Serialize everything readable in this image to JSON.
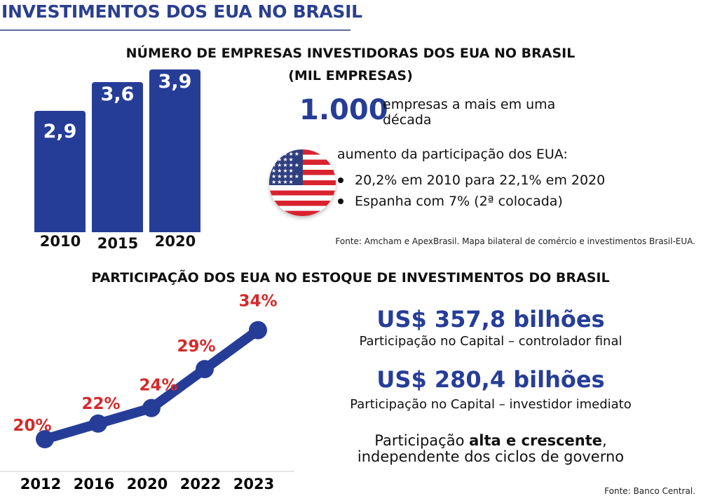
{
  "header": {
    "title": "INVESTIMENTOS DOS EUA NO BRASIL"
  },
  "companies": {
    "title_line1": "NÚMERO DE EMPRESAS INVESTIDORAS DOS EUA NO BRASIL",
    "title_line2": "(MIL EMPRESAS)",
    "highlight_number": "1.000",
    "highlight_text_line1": "empresas a mais em uma",
    "highlight_text_line2": "década",
    "flag_icon": "us-flag-icon",
    "share_heading": "aumento da participação dos EUA:",
    "bullets": [
      "20,2% em 2010 para 22,1% em 2020",
      "Espanha com 7% (2ª colocada)"
    ],
    "source": "Fonte: Amcham e ApexBrasil. Mapa bilateral de comércio e investimentos Brasil-EUA."
  },
  "stock": {
    "title": "PARTICIPAÇÃO DOS EUA NO ESTOQUE DE INVESTIMENTOS DO BRASIL",
    "value1": "US$ 357,8 bilhões",
    "label1": "Participação no Capital – controlador final",
    "value2": "US$ 280,4 bilhões",
    "label2": "Participação no Capital – investidor imediato",
    "note_prefix": "Participação ",
    "note_bold": "alta e crescente",
    "note_suffix": ",",
    "note_line2": "independente dos ciclos de governo",
    "source": "Fonte: Banco Central."
  },
  "colors": {
    "brand_blue": "#263d98",
    "label_red": "#d42a2a"
  },
  "chart_data": [
    {
      "type": "bar",
      "title": "NÚMERO DE EMPRESAS INVESTIDORAS DOS EUA NO BRASIL (MIL EMPRESAS)",
      "categories": [
        "2010",
        "2015",
        "2020"
      ],
      "values": [
        2.9,
        3.6,
        3.9
      ],
      "value_labels": [
        "2,9",
        "3,6",
        "3,9"
      ],
      "ylabel": "mil empresas"
    },
    {
      "type": "line",
      "title": "PARTICIPAÇÃO DOS EUA NO ESTOQUE DE INVESTIMENTOS DO BRASIL",
      "categories": [
        "2012",
        "2016",
        "2020",
        "2022",
        "2023"
      ],
      "values": [
        20,
        22,
        24,
        29,
        34
      ],
      "value_labels": [
        "20%",
        "22%",
        "24%",
        "29%",
        "34%"
      ],
      "ylabel": "%"
    }
  ]
}
